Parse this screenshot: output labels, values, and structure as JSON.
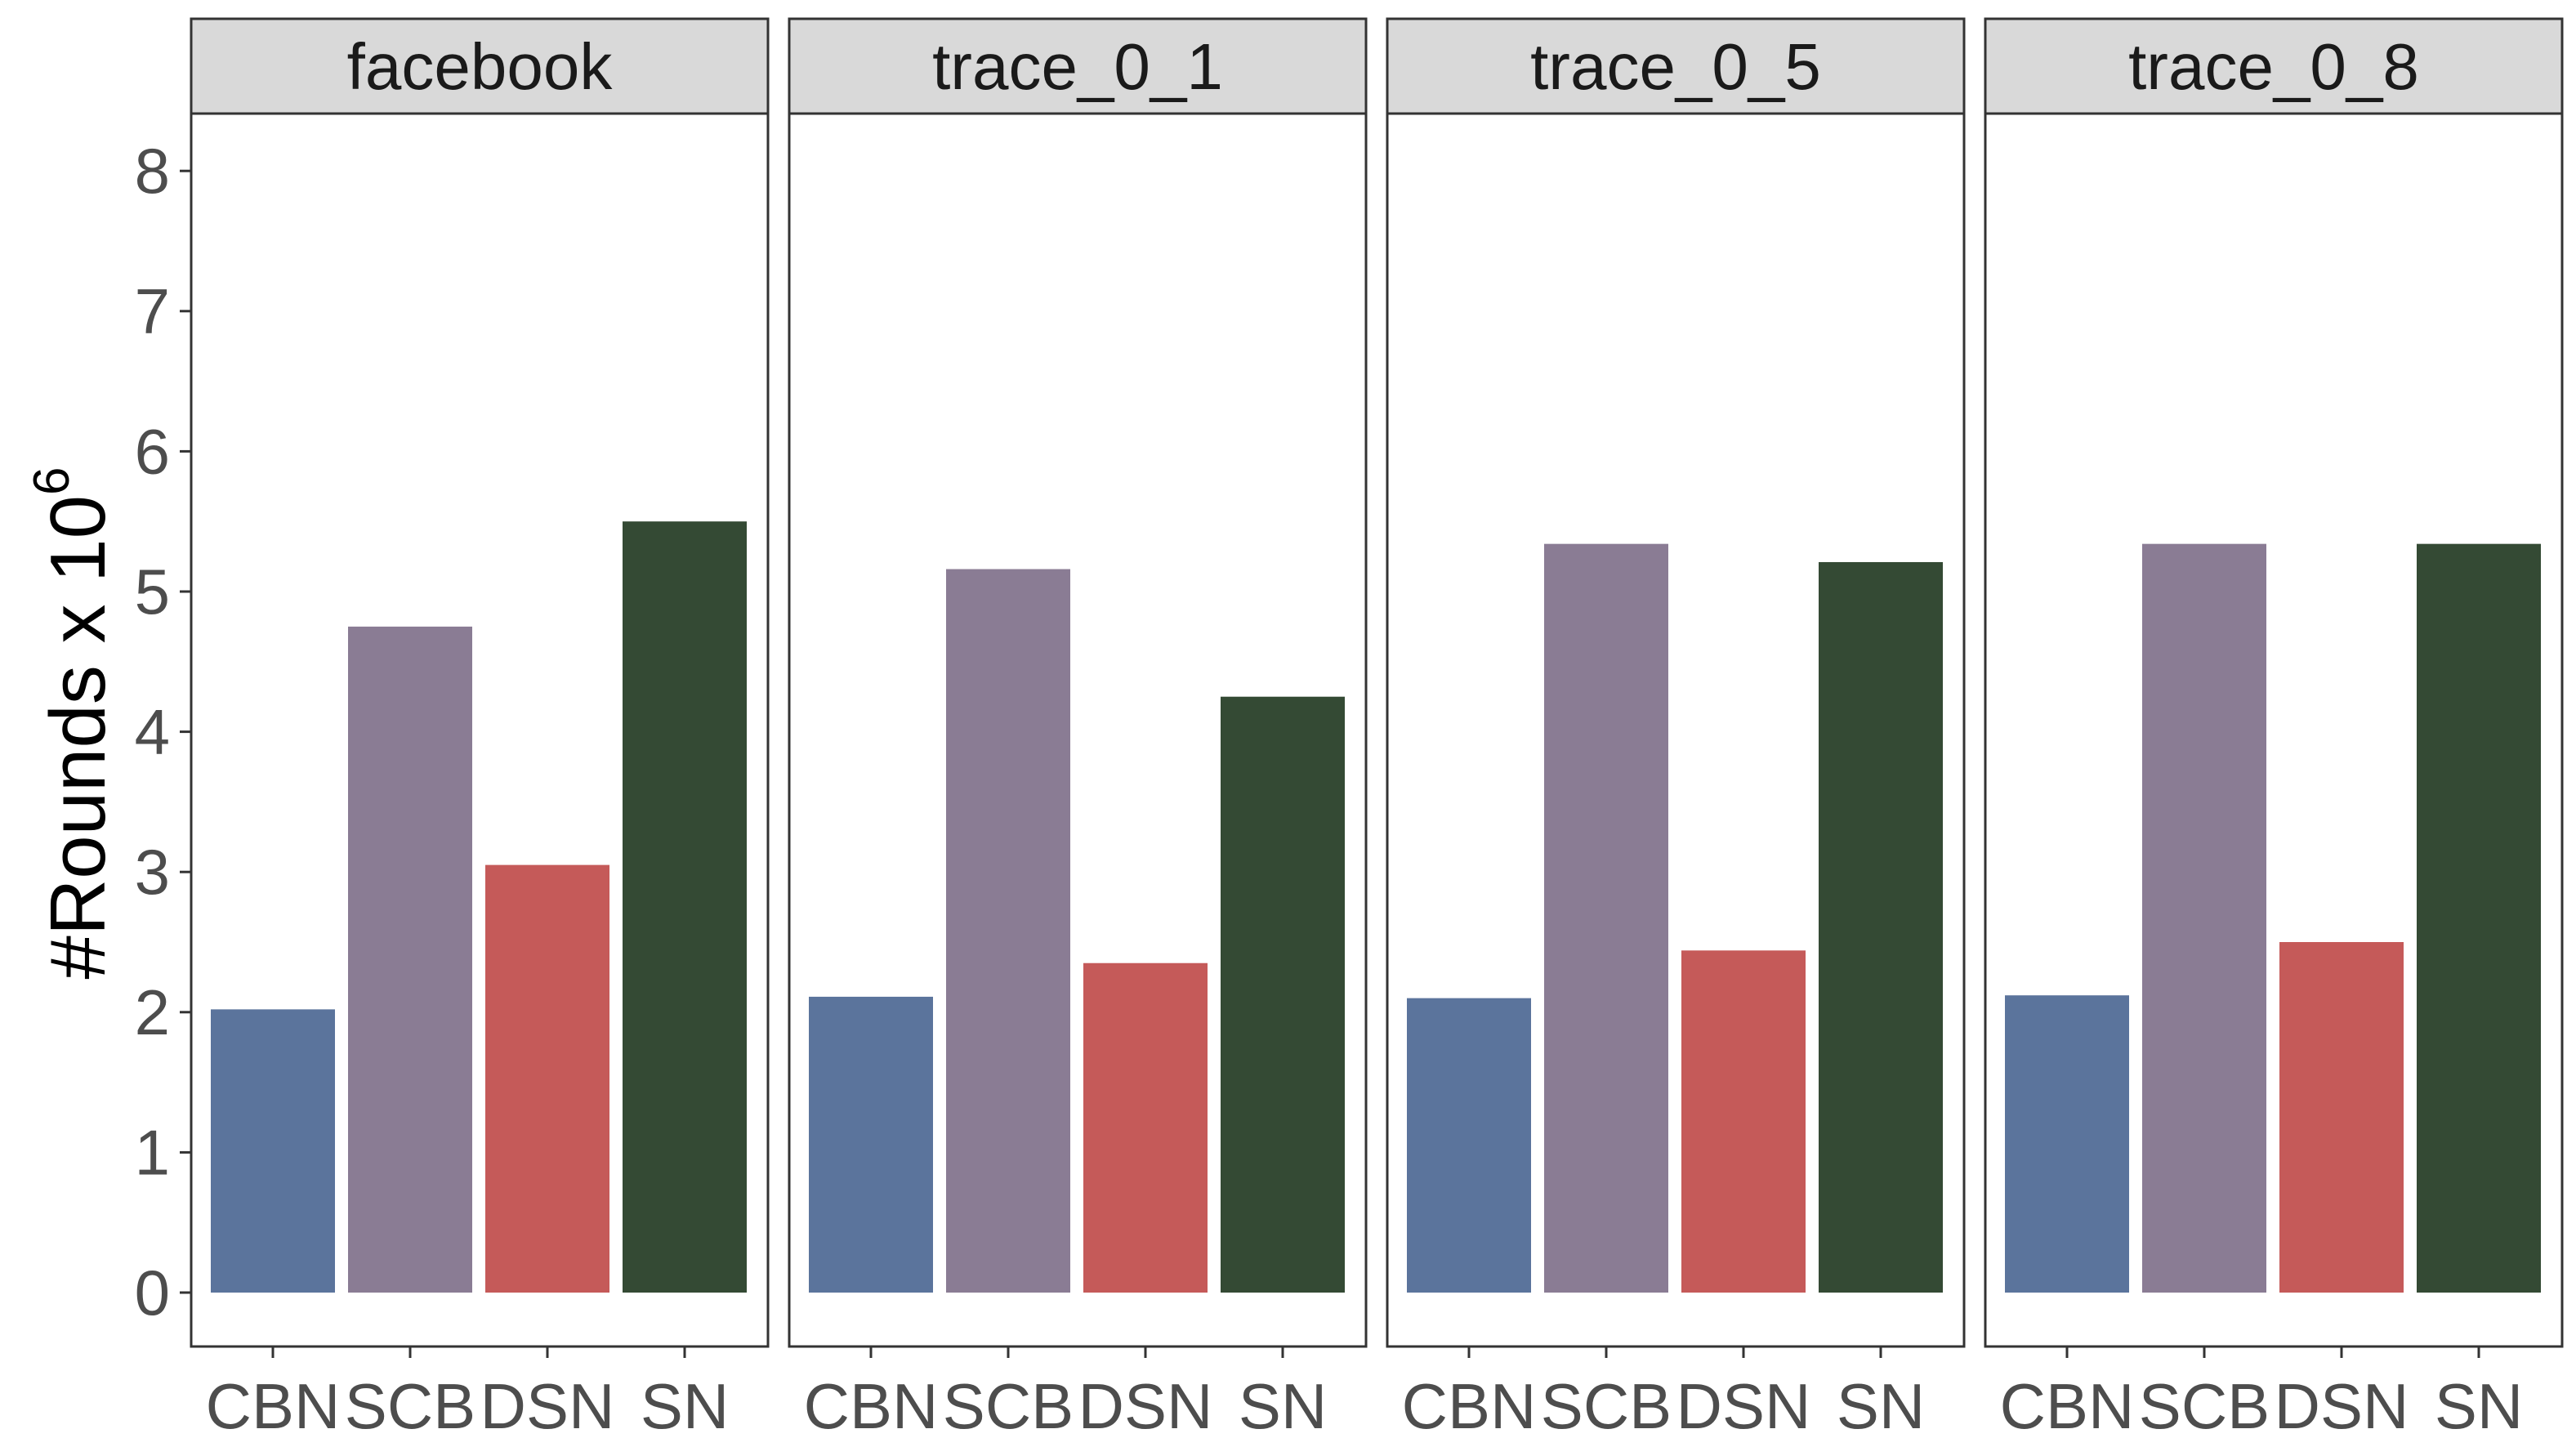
{
  "chart_data": {
    "type": "bar",
    "ylabel": "#Rounds x 10",
    "ylabel_exponent": "6",
    "ylim": [
      0,
      8.4
    ],
    "yticks": [
      "0",
      "1",
      "2",
      "3",
      "4",
      "5",
      "6",
      "7",
      "8"
    ],
    "categories": [
      "CBN",
      "SCB",
      "DSN",
      "SN"
    ],
    "colors": [
      "#5b749c",
      "#8a7c94",
      "#c55a59",
      "#344a34"
    ],
    "grid": false,
    "legend": "none",
    "panels": [
      {
        "label": "facebook",
        "values": [
          2.02,
          4.75,
          3.05,
          5.5
        ]
      },
      {
        "label": "trace_0_1",
        "values": [
          2.11,
          5.16,
          2.35,
          4.25
        ]
      },
      {
        "label": "trace_0_5",
        "values": [
          2.1,
          5.34,
          2.44,
          5.21
        ]
      },
      {
        "label": "trace_0_8",
        "values": [
          2.12,
          5.34,
          2.5,
          5.34
        ]
      }
    ]
  }
}
